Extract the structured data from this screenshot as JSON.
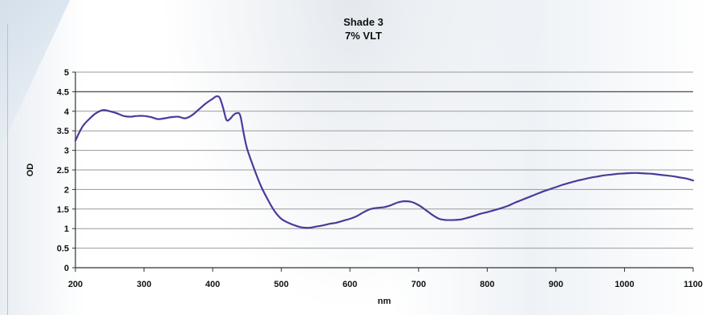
{
  "chart_data": {
    "type": "line",
    "title": "Shade 3",
    "subtitle": "7% VLT",
    "xlabel": "nm",
    "ylabel": "OD",
    "xlim": [
      200,
      1100
    ],
    "ylim": [
      0,
      5
    ],
    "xticks": [
      "200",
      "300",
      "400",
      "500",
      "600",
      "700",
      "800",
      "900",
      "1000",
      "1100"
    ],
    "yticks": [
      "0",
      "0.5",
      "1",
      "1.5",
      "2",
      "2.5",
      "3",
      "3.5",
      "4",
      "4.5",
      "5"
    ],
    "grid": "horizontal",
    "line_color": "#4b3a9a",
    "series": [
      {
        "x": [
          200,
          210,
          220,
          230,
          240,
          250,
          260,
          270,
          280,
          290,
          300,
          310,
          320,
          330,
          340,
          350,
          360,
          370,
          380,
          390,
          400,
          405,
          410,
          415,
          420,
          425,
          430,
          435,
          440,
          445,
          450,
          460,
          470,
          480,
          490,
          500,
          510,
          520,
          530,
          540,
          550,
          560,
          570,
          580,
          590,
          600,
          610,
          620,
          630,
          640,
          650,
          660,
          670,
          680,
          690,
          700,
          710,
          720,
          730,
          740,
          750,
          760,
          770,
          780,
          790,
          800,
          810,
          820,
          830,
          840,
          850,
          860,
          870,
          880,
          890,
          900,
          910,
          920,
          930,
          940,
          950,
          960,
          970,
          980,
          990,
          1000,
          1010,
          1020,
          1030,
          1040,
          1050,
          1060,
          1070,
          1080,
          1090,
          1100
        ],
        "values": [
          3.25,
          3.6,
          3.8,
          3.95,
          4.03,
          4.0,
          3.95,
          3.88,
          3.86,
          3.88,
          3.88,
          3.85,
          3.8,
          3.82,
          3.85,
          3.86,
          3.82,
          3.9,
          4.05,
          4.2,
          4.32,
          4.38,
          4.35,
          4.1,
          3.78,
          3.8,
          3.9,
          3.95,
          3.9,
          3.45,
          3.05,
          2.55,
          2.1,
          1.75,
          1.45,
          1.25,
          1.15,
          1.08,
          1.03,
          1.02,
          1.05,
          1.08,
          1.12,
          1.15,
          1.2,
          1.25,
          1.32,
          1.42,
          1.5,
          1.53,
          1.55,
          1.6,
          1.67,
          1.7,
          1.68,
          1.6,
          1.48,
          1.35,
          1.25,
          1.22,
          1.22,
          1.23,
          1.27,
          1.32,
          1.38,
          1.42,
          1.47,
          1.52,
          1.58,
          1.66,
          1.73,
          1.8,
          1.87,
          1.94,
          2.0,
          2.06,
          2.12,
          2.17,
          2.22,
          2.26,
          2.3,
          2.33,
          2.36,
          2.38,
          2.4,
          2.41,
          2.42,
          2.42,
          2.41,
          2.4,
          2.38,
          2.36,
          2.34,
          2.31,
          2.28,
          2.23
        ]
      }
    ]
  }
}
